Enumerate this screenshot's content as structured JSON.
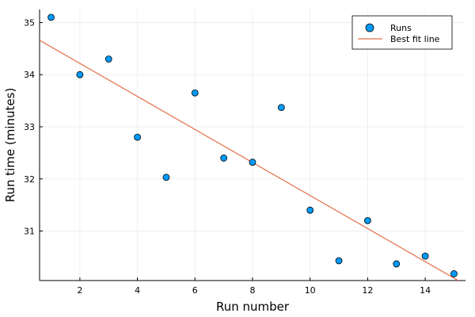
{
  "chart_data": {
    "type": "scatter",
    "title": "",
    "xlabel": "Run number",
    "ylabel": "Run time (minutes)",
    "xlim": [
      0.6,
      15.4
    ],
    "ylim": [
      30.05,
      35.25
    ],
    "x_ticks": [
      2,
      4,
      6,
      8,
      10,
      12,
      14
    ],
    "y_ticks": [
      31,
      32,
      33,
      34,
      35
    ],
    "grid": true,
    "legend_position": "top-right",
    "series": [
      {
        "name": "Runs",
        "kind": "scatter",
        "color": "#009AFA",
        "x": [
          1,
          2,
          3,
          4,
          5,
          6,
          7,
          8,
          9,
          10,
          11,
          12,
          13,
          14,
          15
        ],
        "y": [
          35.1,
          34.0,
          34.3,
          32.8,
          32.03,
          33.65,
          32.4,
          32.32,
          33.37,
          31.4,
          30.43,
          31.2,
          30.37,
          30.52,
          30.18
        ]
      },
      {
        "name": "Best fit line",
        "kind": "line",
        "color": "#E26F46",
        "x": [
          0.6,
          15.4
        ],
        "y": [
          34.66,
          29.97
        ]
      }
    ]
  }
}
